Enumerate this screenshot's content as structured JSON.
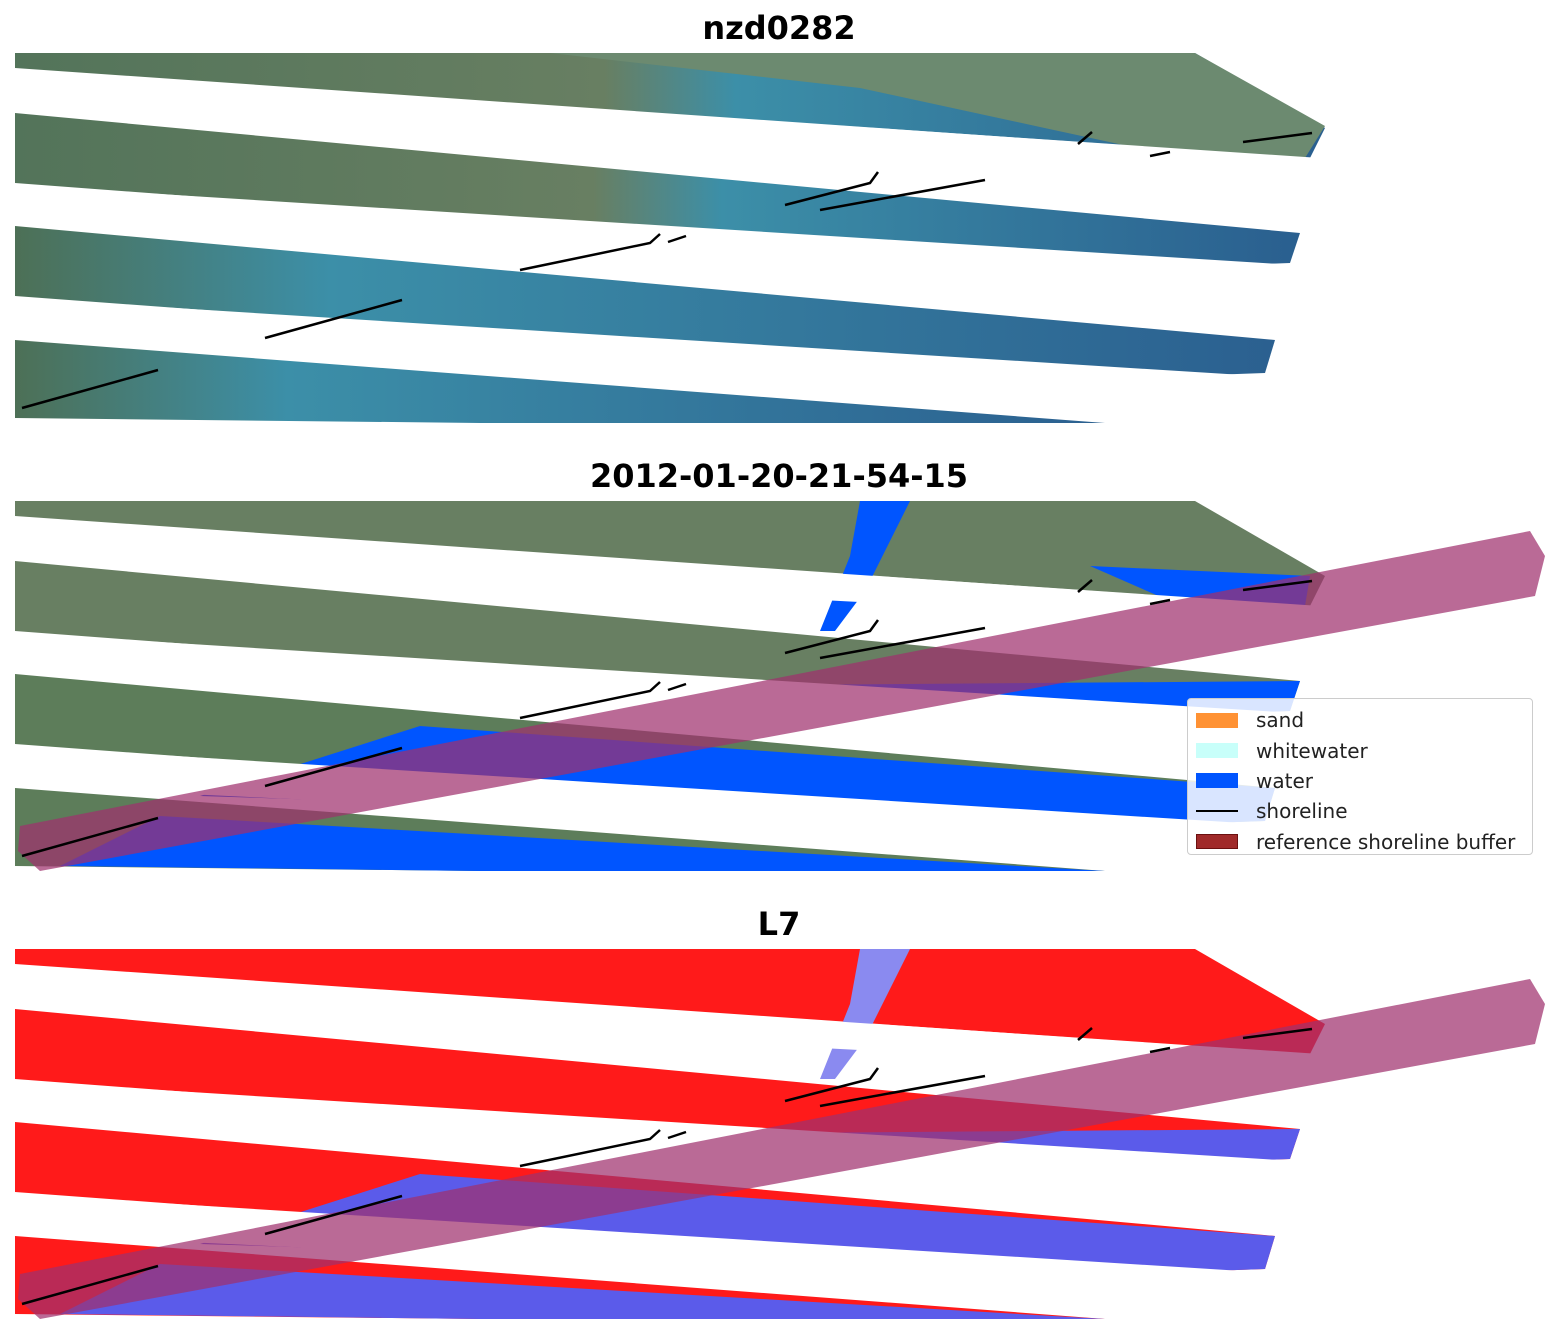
{
  "titles": {
    "panel1": "nzd0282",
    "panel2": "2012-01-20-21-54-15",
    "panel3": "L7"
  },
  "legend": {
    "items": [
      {
        "label": "sand",
        "color": "#ff9234",
        "kind": "patch"
      },
      {
        "label": "whitewater",
        "color": "#c8fffa",
        "kind": "patch"
      },
      {
        "label": "water",
        "color": "#0055ff",
        "kind": "patch"
      },
      {
        "label": "shoreline",
        "color": "#000000",
        "kind": "line"
      },
      {
        "label": "reference shoreline buffer",
        "color": "#a02a2a",
        "kind": "patch"
      }
    ]
  },
  "colors": {
    "land_green": "#5d7d5a",
    "sea_teal": "#3c8fa8",
    "sea_deep": "#2a5f8f",
    "water_class": "#0055ff",
    "index_red": "#ff1a1a",
    "index_blue": "#5b5bea",
    "buffer_overlay": "#b5508a"
  }
}
